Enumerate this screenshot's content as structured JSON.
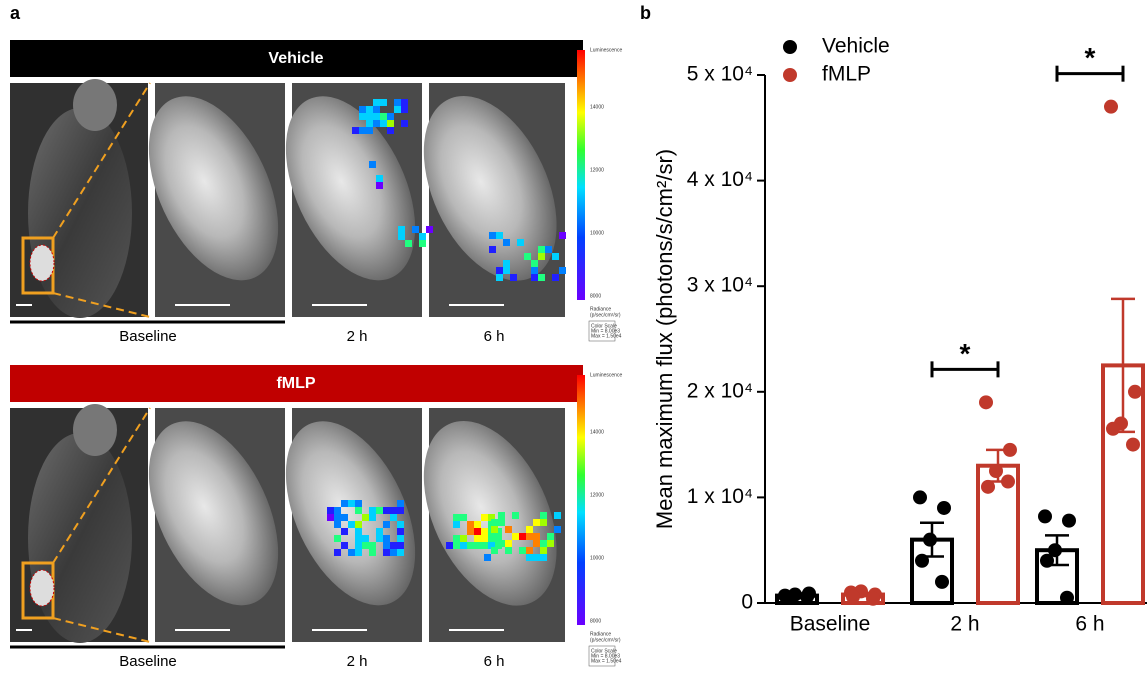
{
  "panel_a": {
    "label": "a",
    "rows": [
      {
        "title": "Vehicle",
        "columns": [
          "Baseline",
          "2 h",
          "6 h"
        ]
      },
      {
        "title": "fMLP",
        "columns": [
          "Baseline",
          "2 h",
          "6 h"
        ]
      }
    ],
    "scale": {
      "title": "Luminescence",
      "ticks": [
        "14000",
        "12000",
        "10000",
        "8000"
      ],
      "unit_title": "Radiance",
      "unit": "(p/sec/cm²/sr)",
      "box_title": "Color Scale",
      "min": "Min = 8.00e3",
      "max": "Max = 1.50e4"
    }
  },
  "chart_data": {
    "type": "bar",
    "panel_label": "b",
    "y_label": "Mean maximum flux (photons/s/cm²/sr)",
    "categories": [
      "Baseline",
      "2 h",
      "6 h"
    ],
    "ylim": [
      0,
      50000
    ],
    "yticks": [
      0,
      {
        "value": 10000,
        "label": "1 x 10⁴"
      },
      {
        "value": 20000,
        "label": "2 x 10⁴"
      },
      {
        "value": 30000,
        "label": "3 x 10⁴"
      },
      {
        "value": 40000,
        "label": "4 x 10⁴"
      },
      {
        "value": 50000,
        "label": "5 x 10⁴"
      }
    ],
    "series": [
      {
        "name": "Vehicle",
        "color": "#000000",
        "values": [
          700,
          6000,
          5000
        ],
        "errors": [
          150,
          1600,
          1400
        ],
        "points": [
          [
            700,
            900,
            800,
            500,
            600
          ],
          [
            10000,
            9000,
            6000,
            4000,
            2000
          ],
          [
            8200,
            7800,
            5000,
            4000,
            500
          ]
        ]
      },
      {
        "name": "fMLP",
        "color": "#c0392b",
        "values": [
          800,
          13000,
          22500
        ],
        "errors": [
          150,
          1500,
          6300
        ],
        "points": [
          [
            1000,
            800,
            1100,
            600,
            400
          ],
          [
            19000,
            14500,
            12500,
            11000,
            11500
          ],
          [
            47000,
            20000,
            17000,
            16500,
            15000
          ]
        ]
      }
    ],
    "significance": [
      {
        "category": "2 h",
        "text": "*"
      },
      {
        "category": "6 h",
        "text": "*"
      }
    ]
  }
}
